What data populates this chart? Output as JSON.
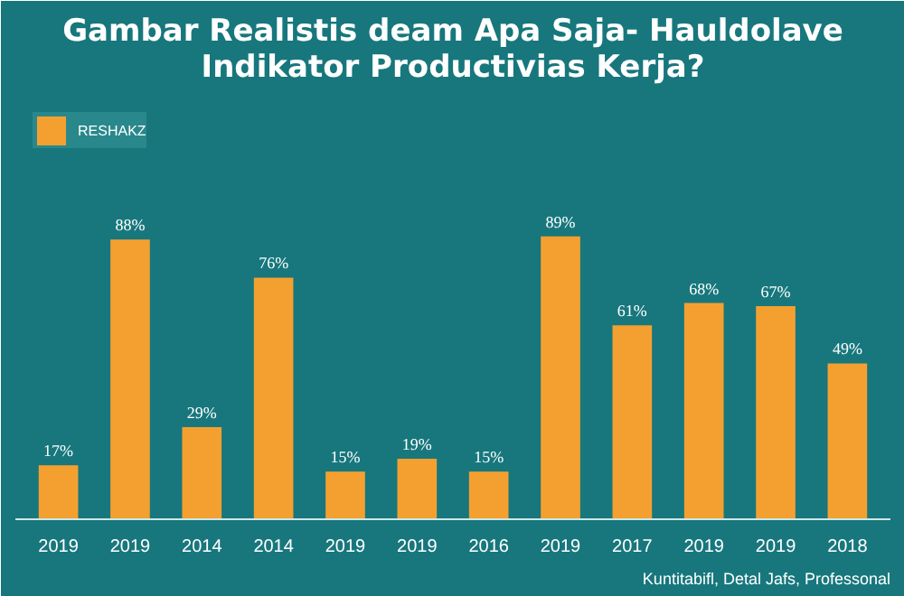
{
  "chart_data": {
    "type": "bar",
    "title": "Gambar Realistis deam Apa Saja- Hauldolave Indikator Productivias Kerja?",
    "categories": [
      "2019",
      "2019",
      "2014",
      "2014",
      "2019",
      "2019",
      "2016",
      "2019",
      "2017",
      "2019",
      "2019",
      "2018"
    ],
    "series": [
      {
        "name": "RESHAKZ",
        "color": "#f4a030",
        "values": [
          17,
          88,
          29,
          76,
          15,
          19,
          15,
          89,
          61,
          68,
          67,
          49
        ],
        "value_labels": [
          "17%",
          "88%",
          "29%",
          "76%",
          "15%",
          "19%",
          "15%",
          "89%",
          "61%",
          "68%",
          "67%",
          "49%"
        ]
      }
    ],
    "legend": "top left",
    "grid": false,
    "annotations": [
      "Kuntitabifl, Detal Jafs, Professonal"
    ]
  }
}
